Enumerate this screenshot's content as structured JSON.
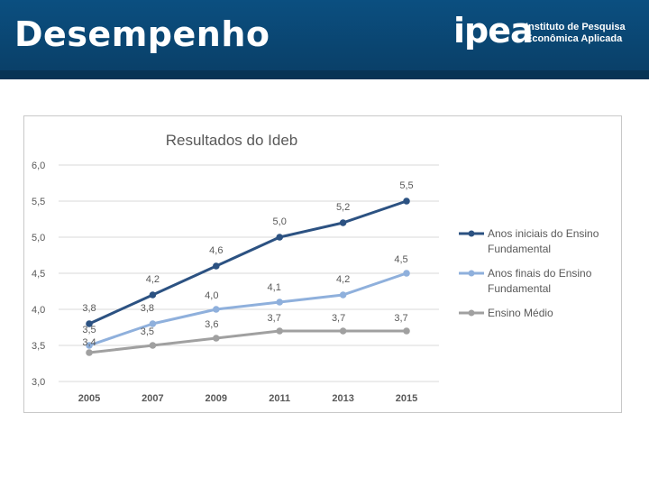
{
  "header": {
    "title": "Desempenho",
    "logo_word": "ipea",
    "logo_line1": "Instituto de Pesquisa",
    "logo_line2": "Econômica Aplicada"
  },
  "colors": {
    "header_bg": "#0b4f80",
    "series1": "#2c5282",
    "series2": "#8fb0dc",
    "series3": "#a0a0a0",
    "grid": "#d9d9d9",
    "text": "#595959"
  },
  "chart_data": {
    "type": "line",
    "title": "Resultados do Ideb",
    "xlabel": "",
    "ylabel": "",
    "categories": [
      "2005",
      "2007",
      "2009",
      "2011",
      "2013",
      "2015"
    ],
    "y_ticks": [
      "6,0",
      "5,5",
      "5,0",
      "4,5",
      "4,0",
      "3,5",
      "3,0"
    ],
    "ylim": [
      3.0,
      6.0
    ],
    "grid": true,
    "legend_position": "right",
    "series": [
      {
        "name": "Anos iniciais do Ensino Fundamental",
        "legend_lines": [
          "Anos iniciais do Ensino",
          "Fundamental"
        ],
        "values": [
          3.8,
          4.2,
          4.6,
          5.0,
          5.2,
          5.5
        ],
        "labels": [
          "3,8",
          "4,2",
          "4,6",
          "5,0",
          "5,2",
          "5,5"
        ]
      },
      {
        "name": "Anos finais do Ensino Fundamental",
        "legend_lines": [
          "Anos finais do Ensino",
          "Fundamental"
        ],
        "values": [
          3.5,
          3.8,
          4.0,
          4.1,
          4.2,
          4.5
        ],
        "labels": [
          "3,5",
          "3,8",
          "4,0",
          "4,1",
          "4,2",
          "4,5"
        ]
      },
      {
        "name": "Ensino Médio",
        "legend_lines": [
          "Ensino Médio"
        ],
        "values": [
          3.4,
          3.5,
          3.6,
          3.7,
          3.7,
          3.7
        ],
        "labels": [
          "3,4",
          "3,5",
          "3,6",
          "3,7",
          "3,7",
          "3,7"
        ]
      }
    ]
  }
}
